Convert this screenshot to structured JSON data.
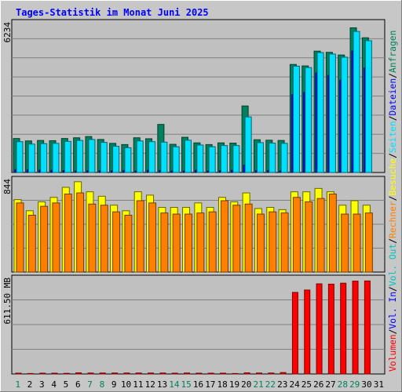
{
  "chart_data": {
    "type": "bar",
    "title": "Tages-Statistik im Monat Juni 2025",
    "categories": [
      "1",
      "2",
      "3",
      "4",
      "5",
      "6",
      "7",
      "8",
      "9",
      "10",
      "11",
      "12",
      "13",
      "14",
      "15",
      "16",
      "17",
      "18",
      "19",
      "20",
      "21",
      "22",
      "23",
      "24",
      "25",
      "26",
      "27",
      "28",
      "29",
      "30",
      "31"
    ],
    "weekend_days": [
      "1",
      "7",
      "8",
      "14",
      "15",
      "21",
      "22",
      "28",
      "29"
    ],
    "panels": [
      {
        "name": "requests",
        "axis_label": "6234",
        "ylim": [
          0,
          6234
        ],
        "series": [
          {
            "name": "Anfragen",
            "color": "#00805c",
            "values": [
              1400,
              1300,
              1320,
              1310,
              1400,
              1430,
              1480,
              1360,
              1200,
              1150,
              1430,
              1390,
              1980,
              1160,
              1450,
              1220,
              1150,
              1220,
              1210,
              2740,
              1350,
              1330,
              1320,
              4450,
              4390,
              5000,
              4950,
              4840,
              5960,
              5550,
              0
            ]
          },
          {
            "name": "Dateien",
            "color": "#0000ff",
            "values": [
              120,
              110,
              100,
              90,
              80,
              60,
              70,
              70,
              70,
              80,
              60,
              90,
              80,
              60,
              60,
              90,
              60,
              70,
              90,
              300,
              80,
              80,
              60,
              3200,
              3300,
              4100,
              4000,
              3800,
              5000,
              4300,
              0
            ]
          },
          {
            "name": "Seiten",
            "color": "#00e0ff",
            "values": [
              1270,
              1170,
              1190,
              1200,
              1280,
              1320,
              1360,
              1240,
              1080,
              1020,
              1300,
              1270,
              1250,
              1060,
              1330,
              1130,
              1060,
              1110,
              1110,
              2290,
              1230,
              1210,
              1200,
              4380,
              4320,
              4940,
              4880,
              4750,
              5810,
              5430,
              0
            ]
          }
        ]
      },
      {
        "name": "visits",
        "axis_label": "844",
        "ylim": [
          0,
          844
        ],
        "series": [
          {
            "name": "Besuche",
            "color": "#ffff00",
            "values": [
              650,
              550,
              630,
              670,
              760,
              810,
              720,
              680,
              600,
              550,
              720,
              690,
              580,
              580,
              580,
              620,
              580,
              670,
              630,
              710,
              570,
              580,
              560,
              720,
              720,
              750,
              720,
              600,
              640,
              600,
              0
            ]
          },
          {
            "name": "Rechner",
            "color": "#ff8000",
            "values": [
              620,
              510,
              590,
              620,
              700,
              710,
              610,
              600,
              540,
              510,
              640,
              620,
              530,
              520,
              520,
              530,
              540,
              640,
              600,
              610,
              520,
              540,
              530,
              670,
              630,
              660,
              700,
              520,
              520,
              530,
              0
            ]
          }
        ]
      },
      {
        "name": "volume",
        "axis_label": "611.50 MB",
        "ylim": [
          0,
          611.5
        ],
        "series": [
          {
            "name": "Vol. Out",
            "color": "#00c0c0",
            "values": [
              0,
              0,
              0,
              0,
              0,
              0,
              0,
              0,
              0,
              0,
              0,
              0,
              0,
              0,
              0,
              0,
              0,
              0,
              0,
              0,
              0,
              0,
              0,
              0,
              0,
              0,
              0,
              0,
              0,
              0,
              0
            ]
          },
          {
            "name": "Vol. In",
            "color": "#0000ff",
            "values": [
              0,
              0,
              0,
              0,
              0,
              0,
              0,
              0,
              0,
              0,
              0,
              0,
              0,
              0,
              0,
              0,
              0,
              0,
              0,
              0,
              0,
              0,
              0,
              0,
              0,
              0,
              0,
              0,
              0,
              0,
              0
            ]
          },
          {
            "name": "Volumen",
            "color": "#ff0000",
            "values": [
              5,
              3,
              5,
              5,
              4,
              7,
              6,
              6,
              6,
              6,
              6,
              6,
              6,
              5,
              6,
              5,
              5,
              5,
              3,
              7,
              6,
              6,
              9,
              513,
              528,
              567,
              565,
              571,
              584,
              585,
              0
            ]
          }
        ]
      }
    ],
    "legend": {
      "placement": "right, vertical",
      "entries": [
        {
          "text": "Volumen",
          "color": "#ff0000"
        },
        {
          "text": "Vol. In",
          "color": "#0000ff"
        },
        {
          "text": "Vol. Out",
          "color": "#00c0c0"
        },
        {
          "text": "Rechner",
          "color": "#ff8000"
        },
        {
          "text": "Besuche",
          "color": "#ffff00"
        },
        {
          "text": "Seiten",
          "color": "#00e0ff"
        },
        {
          "text": "Dateien",
          "color": "#0000ff"
        },
        {
          "text": "Anfragen",
          "color": "#00805c"
        }
      ],
      "separator": "/"
    },
    "grid": true,
    "colors": {
      "background": "#c7c7c7",
      "plot_background": "#c0c0c0",
      "grid": "#808080",
      "title": "#0000ff",
      "weekday_label": "#000000",
      "weekend_label": "#00805c"
    }
  }
}
